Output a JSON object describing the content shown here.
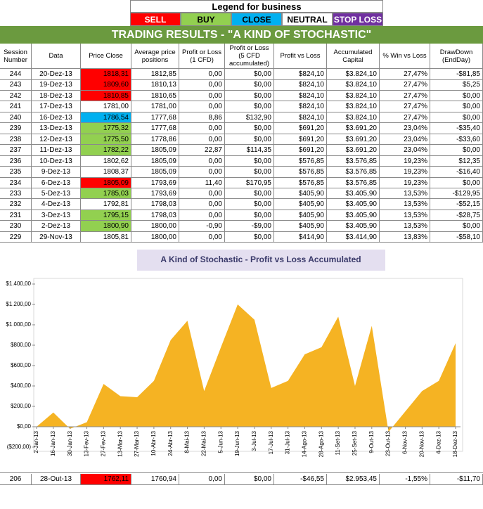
{
  "legend": {
    "title": "Legend for business",
    "items": [
      {
        "label": "SELL",
        "color": "#ff0000",
        "text_color": "#ffffff"
      },
      {
        "label": "BUY",
        "color": "#92d050",
        "text_color": "#000000"
      },
      {
        "label": "CLOSE",
        "color": "#00b0f0",
        "text_color": "#000000"
      },
      {
        "label": "NEUTRAL",
        "color": "#ffffff",
        "text_color": "#000000"
      },
      {
        "label": "STOP LOSS",
        "color": "#7030a0",
        "text_color": "#ffffff"
      }
    ]
  },
  "header": {
    "title": "TRADING RESULTS - \"A KIND OF STOCHASTIC\""
  },
  "table": {
    "columns": [
      "Session Number",
      "Data",
      "Price Close",
      "Average price positions",
      "Profit or Loss (1 CFD)",
      "Profit or Loss (5 CFD accumulated)",
      "Profit vs Loss",
      "Accumulated Capital",
      "% Win vs Loss",
      "DrawDown (EndDay)"
    ],
    "rows": [
      {
        "cells": [
          "244",
          "20-Dez-13",
          "1818,31",
          "1812,85",
          "0,00",
          "$0,00",
          "$824,10",
          "$3.824,10",
          "27,47%",
          "-$81,85"
        ],
        "highlight": "#ff0000"
      },
      {
        "cells": [
          "243",
          "19-Dez-13",
          "1809,60",
          "1810,13",
          "0,00",
          "$0,00",
          "$824,10",
          "$3.824,10",
          "27,47%",
          "$5,25"
        ],
        "highlight": "#ff0000"
      },
      {
        "cells": [
          "242",
          "18-Dez-13",
          "1810,85",
          "1810,65",
          "0,00",
          "$0,00",
          "$824,10",
          "$3.824,10",
          "27,47%",
          "$0,00"
        ],
        "highlight": "#ff0000"
      },
      {
        "cells": [
          "241",
          "17-Dez-13",
          "1781,00",
          "1781,00",
          "0,00",
          "$0,00",
          "$824,10",
          "$3.824,10",
          "27,47%",
          "$0,00"
        ]
      },
      {
        "cells": [
          "240",
          "16-Dez-13",
          "1786,54",
          "1777,68",
          "8,86",
          "$132,90",
          "$824,10",
          "$3.824,10",
          "27,47%",
          "$0,00"
        ],
        "highlight": "#00b0f0"
      },
      {
        "cells": [
          "239",
          "13-Dez-13",
          "1775,32",
          "1777,68",
          "0,00",
          "$0,00",
          "$691,20",
          "$3.691,20",
          "23,04%",
          "-$35,40"
        ],
        "highlight": "#92d050"
      },
      {
        "cells": [
          "238",
          "12-Dez-13",
          "1775,50",
          "1778,86",
          "0,00",
          "$0,00",
          "$691,20",
          "$3.691,20",
          "23,04%",
          "-$33,60"
        ],
        "highlight": "#92d050"
      },
      {
        "cells": [
          "237",
          "11-Dez-13",
          "1782,22",
          "1805,09",
          "22,87",
          "$114,35",
          "$691,20",
          "$3.691,20",
          "23,04%",
          "$0,00"
        ],
        "highlight": "#92d050"
      },
      {
        "cells": [
          "236",
          "10-Dez-13",
          "1802,62",
          "1805,09",
          "0,00",
          "$0,00",
          "$576,85",
          "$3.576,85",
          "19,23%",
          "$12,35"
        ]
      },
      {
        "cells": [
          "235",
          "9-Dez-13",
          "1808,37",
          "1805,09",
          "0,00",
          "$0,00",
          "$576,85",
          "$3.576,85",
          "19,23%",
          "-$16,40"
        ]
      },
      {
        "cells": [
          "234",
          "6-Dez-13",
          "1805,09",
          "1793,69",
          "11,40",
          "$170,95",
          "$576,85",
          "$3.576,85",
          "19,23%",
          "$0,00"
        ],
        "highlight": "#ff0000"
      },
      {
        "cells": [
          "233",
          "5-Dez-13",
          "1785,03",
          "1793,69",
          "0,00",
          "$0,00",
          "$405,90",
          "$3.405,90",
          "13,53%",
          "-$129,95"
        ],
        "highlight": "#92d050"
      },
      {
        "cells": [
          "232",
          "4-Dez-13",
          "1792,81",
          "1798,03",
          "0,00",
          "$0,00",
          "$405,90",
          "$3.405,90",
          "13,53%",
          "-$52,15"
        ]
      },
      {
        "cells": [
          "231",
          "3-Dez-13",
          "1795,15",
          "1798,03",
          "0,00",
          "$0,00",
          "$405,90",
          "$3.405,90",
          "13,53%",
          "-$28,75"
        ],
        "highlight": "#92d050"
      },
      {
        "cells": [
          "230",
          "2-Dez-13",
          "1800,90",
          "1800,00",
          "-0,90",
          "-$9,00",
          "$405,90",
          "$3.405,90",
          "13,53%",
          "$0,00"
        ],
        "highlight": "#92d050"
      },
      {
        "cells": [
          "229",
          "29-Nov-13",
          "1805,81",
          "1800,00",
          "0,00",
          "$0,00",
          "$414,90",
          "$3.414,90",
          "13,83%",
          "-$58,10"
        ]
      }
    ],
    "last_row": {
      "cells": [
        "206",
        "28-Out-13",
        "1762,11",
        "1760,94",
        "0,00",
        "$0,00",
        "-$46,55",
        "$2.953,45",
        "-1,55%",
        "-$11,70"
      ],
      "highlight": "#ff0000"
    }
  },
  "chart_data": {
    "type": "area",
    "title": "A Kind of Stochastic - Profit vs Loss Accumulated",
    "color": "#f5b323",
    "categories": [
      "2-Jan-13",
      "16-Jan-13",
      "30-Jan-13",
      "13-Fev-13",
      "27-Fev-13",
      "13-Mar-13",
      "27-Mar-13",
      "10-Abr-13",
      "24-Abr-13",
      "8-Mai-13",
      "22-Mai-13",
      "5-Jun-13",
      "19-Jun-13",
      "3-Jul-13",
      "17-Jul-13",
      "31-Jul-13",
      "14-Ago-13",
      "28-Ago-13",
      "11-Set-13",
      "25-Set-13",
      "9-Out-13",
      "23-Out-13",
      "6-Nov-13",
      "20-Nov-13",
      "4-Dez-13",
      "18-Dez-13"
    ],
    "values": [
      0,
      140,
      -20,
      45,
      420,
      300,
      290,
      450,
      850,
      1040,
      350,
      780,
      1200,
      1050,
      380,
      450,
      710,
      780,
      1080,
      400,
      990,
      -50,
      150,
      350,
      450,
      820
    ],
    "ylim": [
      -200,
      1400
    ],
    "yticks": [
      {
        "value": -200,
        "label": "($200,00)"
      },
      {
        "value": 0,
        "label": "$0,00"
      },
      {
        "value": 200,
        "label": "$200,00"
      },
      {
        "value": 400,
        "label": "$400,00"
      },
      {
        "value": 600,
        "label": "$600,00"
      },
      {
        "value": 800,
        "label": "$800,00"
      },
      {
        "value": 1000,
        "label": "$1.000,00"
      },
      {
        "value": 1200,
        "label": "$1.200,00"
      },
      {
        "value": 1400,
        "label": "$1.400,00"
      }
    ],
    "grid": false
  }
}
